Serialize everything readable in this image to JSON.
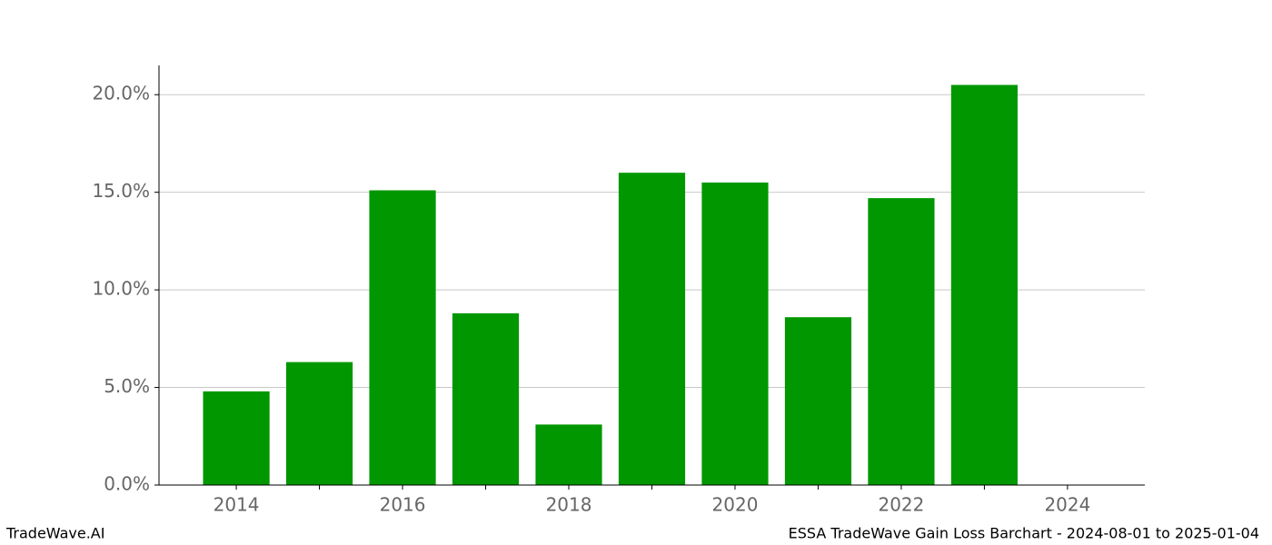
{
  "chart_data": {
    "type": "bar",
    "x": [
      2014,
      2015,
      2016,
      2017,
      2018,
      2019,
      2020,
      2021,
      2022,
      2023
    ],
    "values": [
      4.8,
      6.3,
      15.1,
      8.8,
      3.1,
      16.0,
      15.5,
      8.6,
      14.7,
      20.5
    ],
    "color": "#009700",
    "bar_width": 0.8,
    "xlim": [
      2013.07,
      2024.93
    ],
    "xticks": [
      2014,
      2016,
      2018,
      2020,
      2022,
      2024
    ],
    "xminorticks": [
      2015,
      2017,
      2019,
      2021,
      2023
    ],
    "ylim": [
      0,
      21.5
    ],
    "yticks": [
      {
        "value": 0,
        "label": "0.0%"
      },
      {
        "value": 5,
        "label": "5.0%"
      },
      {
        "value": 10,
        "label": "10.0%"
      },
      {
        "value": 15,
        "label": "15.0%"
      },
      {
        "value": 20,
        "label": "20.0%"
      }
    ],
    "grid": true
  },
  "footer": {
    "left": "TradeWave.AI",
    "right": "ESSA TradeWave Gain Loss Barchart - 2024-08-01 to 2025-01-04"
  }
}
